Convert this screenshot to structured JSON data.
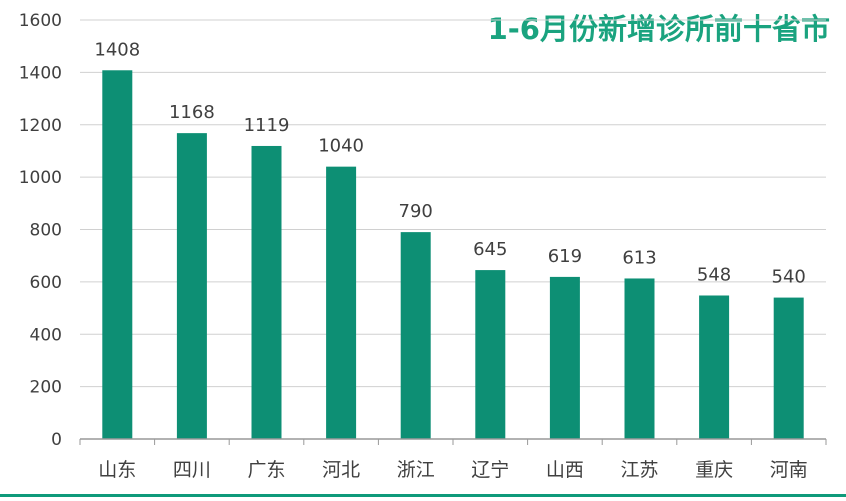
{
  "chart_data": {
    "type": "bar",
    "title": "1-6月份新增诊所前十省市",
    "xlabel": "",
    "ylabel": "",
    "categories": [
      "山东",
      "四川",
      "广东",
      "河北",
      "浙江",
      "辽宁",
      "山西",
      "江苏",
      "重庆",
      "河南"
    ],
    "values": [
      1408,
      1168,
      1119,
      1040,
      790,
      645,
      619,
      613,
      548,
      540
    ],
    "ylim": [
      0,
      1600
    ],
    "yticks": [
      0,
      200,
      400,
      600,
      800,
      1000,
      1200,
      1400,
      1600
    ],
    "grid": true,
    "data_labels": true,
    "colors": {
      "bar": "#0d8f74",
      "title": "#1aa37f",
      "grid": "#d0d0d0",
      "axis": "#999999",
      "text": "#404040"
    }
  }
}
